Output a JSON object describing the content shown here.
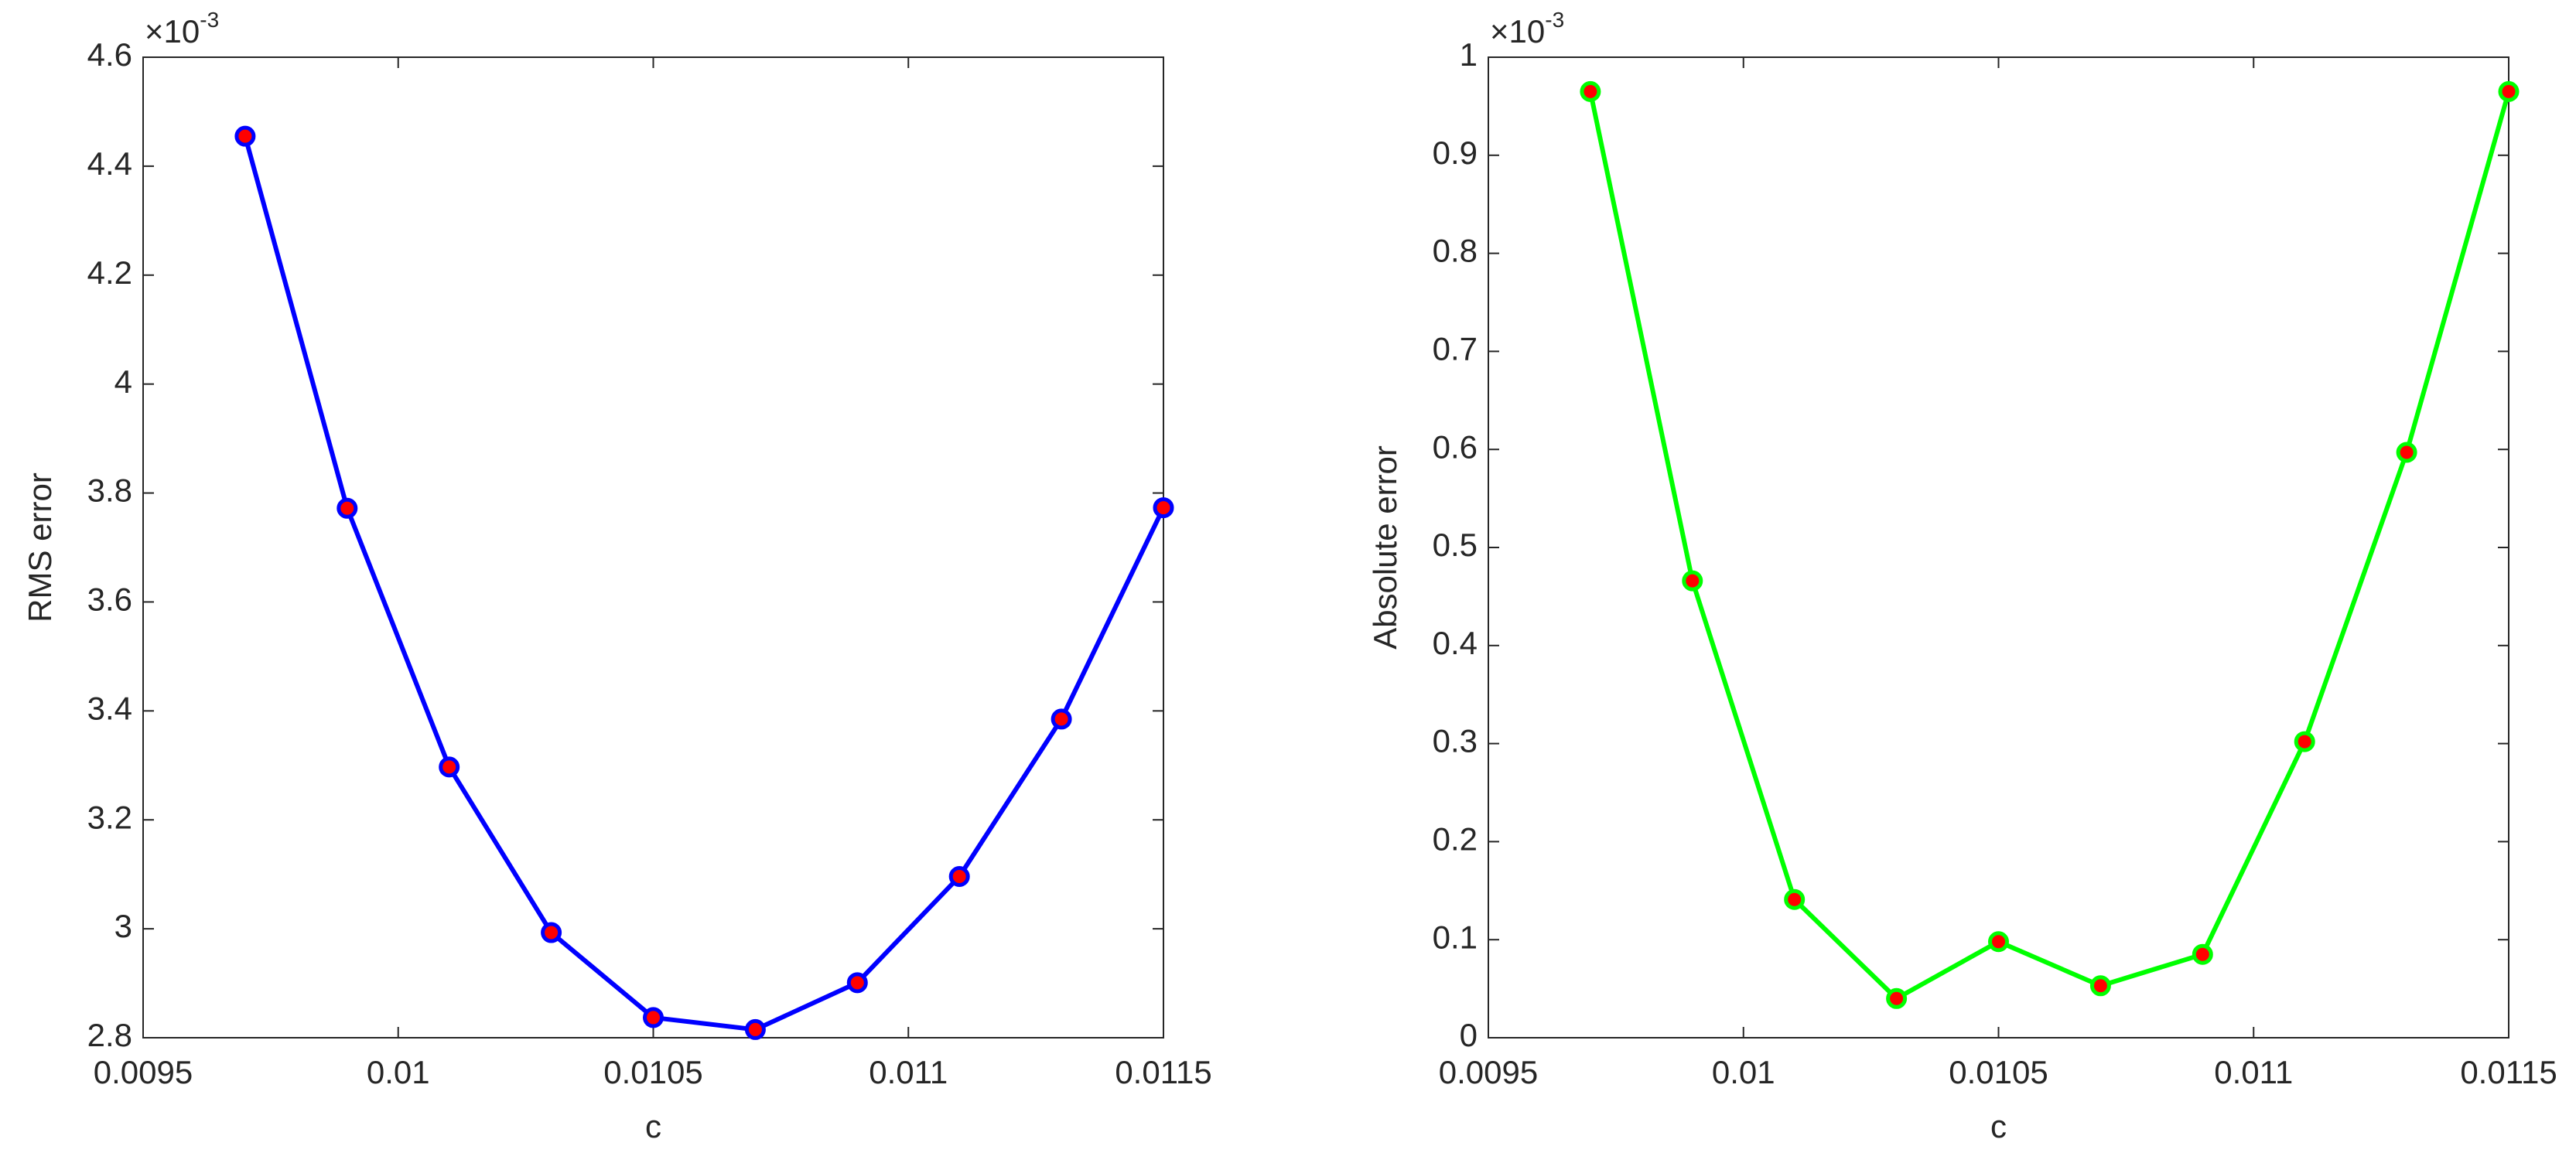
{
  "chart_data": [
    {
      "type": "line",
      "x_label": "c",
      "y_label": "RMS error",
      "y_multiplier": {
        "base": "×10",
        "exponent": "-3"
      },
      "x": [
        0.0097,
        0.0099,
        0.0101,
        0.0103,
        0.0105,
        0.0107,
        0.0109,
        0.0111,
        0.0113,
        0.0115
      ],
      "series": [
        {
          "color": "#0000ff",
          "marker_face": "#ff0000",
          "values": [
            4.455,
            3.772,
            3.297,
            2.993,
            2.837,
            2.815,
            2.901,
            3.096,
            3.385,
            3.773
          ]
        }
      ],
      "xlim": [
        0.0095,
        0.0115
      ],
      "xticks": [
        0.0095,
        0.01,
        0.0105,
        0.011,
        0.0115
      ],
      "ylim": [
        2.8,
        4.6
      ],
      "yticks": [
        2.8,
        3,
        3.2,
        3.4,
        3.6,
        3.8,
        4,
        4.2,
        4.4,
        4.6
      ],
      "grid": false
    },
    {
      "type": "line",
      "x_label": "c",
      "y_label": "Absolute error",
      "y_multiplier": {
        "base": "×10",
        "exponent": "-3"
      },
      "x": [
        0.0097,
        0.0099,
        0.0101,
        0.0103,
        0.0105,
        0.0107,
        0.0109,
        0.0111,
        0.0113,
        0.0115
      ],
      "series": [
        {
          "color": "#00ff00",
          "marker_face": "#ff0000",
          "values": [
            0.965,
            0.466,
            0.141,
            0.04,
            0.098,
            0.053,
            0.085,
            0.302,
            0.597,
            0.965
          ]
        }
      ],
      "xlim": [
        0.0095,
        0.0115
      ],
      "xticks": [
        0.0095,
        0.01,
        0.0105,
        0.011,
        0.0115
      ],
      "ylim": [
        0,
        1
      ],
      "yticks": [
        0,
        0.1,
        0.2,
        0.3,
        0.4,
        0.5,
        0.6,
        0.7,
        0.8,
        0.9,
        1
      ],
      "grid": false
    }
  ]
}
